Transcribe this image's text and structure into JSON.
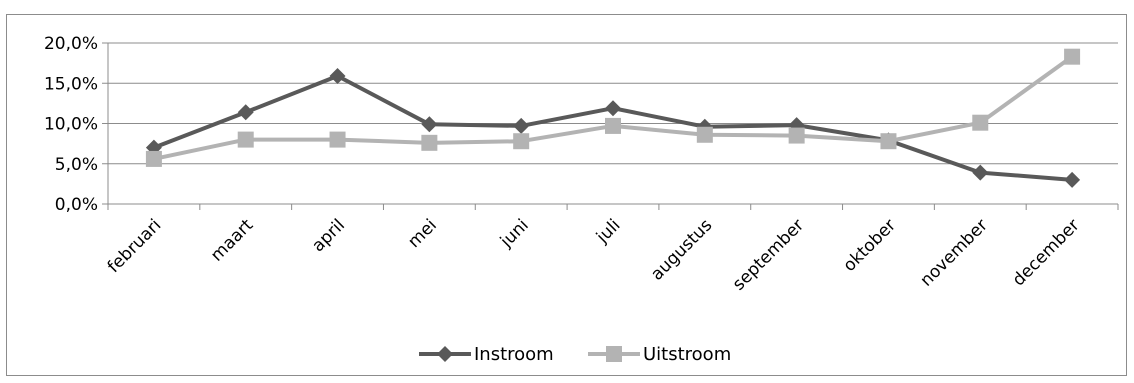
{
  "chart_data": {
    "type": "line",
    "categories": [
      "februari",
      "maart",
      "april",
      "mei",
      "juni",
      "juli",
      "augustus",
      "september",
      "oktober",
      "november",
      "december"
    ],
    "series": [
      {
        "name": "Instroom",
        "color": "#595959",
        "marker": "diamond",
        "values": [
          7.0,
          11.4,
          15.9,
          9.9,
          9.7,
          11.9,
          9.6,
          9.8,
          7.9,
          3.9,
          3.0
        ]
      },
      {
        "name": "Uitstroom",
        "color": "#b3b3b3",
        "marker": "square",
        "values": [
          5.6,
          8.0,
          8.0,
          7.6,
          7.8,
          9.7,
          8.6,
          8.5,
          7.8,
          10.1,
          18.3
        ]
      }
    ],
    "ylim": [
      0,
      20
    ],
    "yticks": [
      0,
      5,
      10,
      15,
      20
    ],
    "ytick_labels": [
      "0,0%",
      "5,0%",
      "10,0%",
      "15,0%",
      "20,0%"
    ],
    "grid": true,
    "legend": "bottom",
    "title": "",
    "xlabel": "",
    "ylabel": ""
  }
}
